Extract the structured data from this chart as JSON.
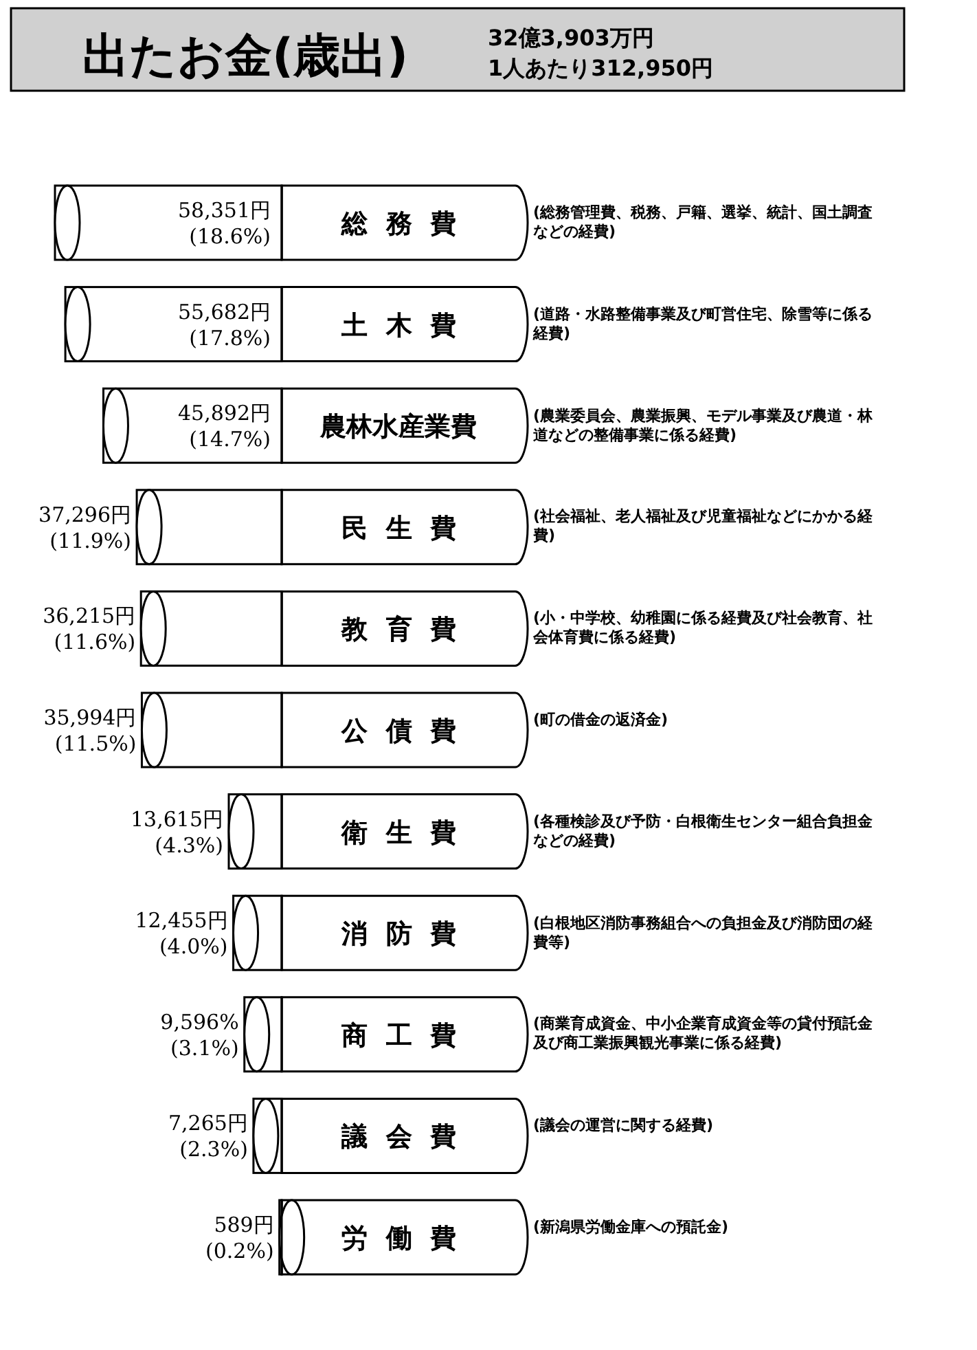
{
  "chart_data": {
    "type": "bar",
    "orientation": "horizontal",
    "title": "出たお金(歳出)",
    "subtitle": "32億3,903万円",
    "categories": [
      "総務費",
      "土木費",
      "農林水産業費",
      "民生費",
      "教育費",
      "公債費",
      "衛生費",
      "消防費",
      "商工費",
      "議会費",
      "労働費"
    ],
    "values": [
      58351,
      55682,
      45892,
      37296,
      36215,
      35994,
      13615,
      12455,
      9596,
      7265,
      589
    ],
    "value_labels": [
      "58,351円 (18.6%)",
      "55,682円 (17.8%)",
      "45,892円 (14.7%)",
      "37,296円 (11.9%)",
      "36,215円 (11.6%)",
      "35,994円 (11.5%)",
      "13,615円 (4.3%)",
      "12,455円 (4.0%)",
      "9,596% (3.1%)",
      "7,265円 (2.3%)",
      "589円 (0.2%)"
    ],
    "color": "#ffffff",
    "annotations": [
      "1人あたり312,950円",
      "(総務管理費、税務、戸籍、選挙、統計、国土調査などの経費)",
      "(道路・水路整備事業及び町営住宅、除雪等に係る経費)",
      "(農業委員会、農業振興、モデル事業及び農道・林道などの整備事業に係る経費)",
      "(社会福祉、老人福祉及び児童福祉などにかかる経費)",
      "(小・中学校、幼稚園に係る経費及び社会教育、社会体育費に係る経費)",
      "(町の借金の返済金)",
      "(各種検診及び予防・白根衛生センター組合負担金などの経費)",
      "(白根地区消防事務組合への負担金及び消防団の経費等)",
      "(商業育成資金、中小企業育成資金等の貸付預託金及び商工業振興観光事業に係る経費)",
      "(議会の運営に関する経費)",
      "(新潟県労働金庫への預託金)"
    ]
  }
}
